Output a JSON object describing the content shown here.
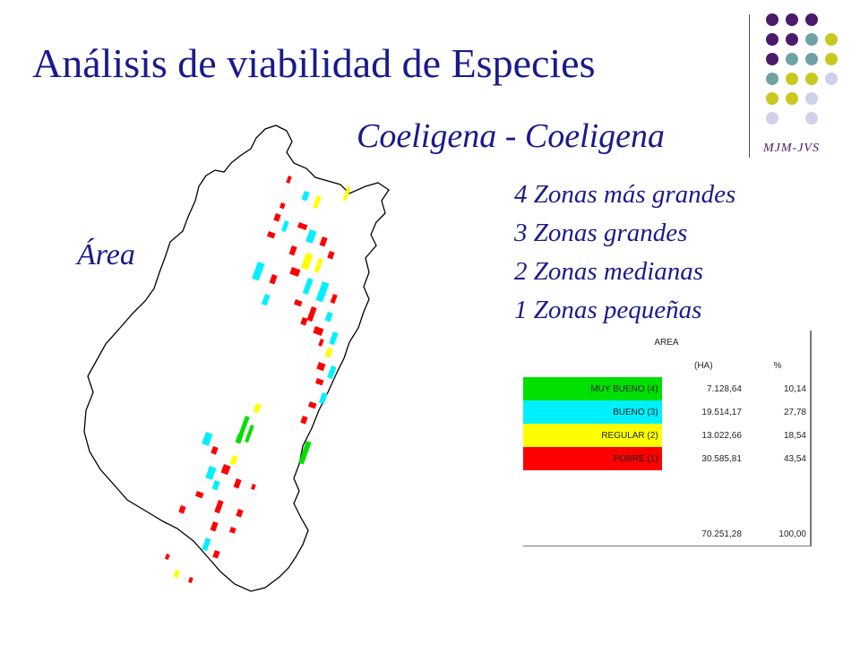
{
  "title": "Análisis de viabilidad de Especies",
  "subtitle": "Coeligena - Coeligena",
  "area_label": "Área",
  "zones": [
    "4 Zonas más grandes",
    "3 Zonas grandes",
    "2 Zonas medianas",
    "1 Zonas pequeñas"
  ],
  "credit": "MJM-JVS",
  "table": {
    "header": "AREA",
    "col_ha": "(HA)",
    "col_pct": "%",
    "rows": [
      {
        "label": "MUY BUENO (4)",
        "ha": "7.128,64",
        "pct": "10,14",
        "color": "#00e000"
      },
      {
        "label": "BUENO (3)",
        "ha": "19.514,17",
        "pct": "27,78",
        "color": "#00f0ff"
      },
      {
        "label": "REGULAR (2)",
        "ha": "13.022,66",
        "pct": "18,54",
        "color": "#ffff00"
      },
      {
        "label": "POBRE (1)",
        "ha": "30.585,81",
        "pct": "43,54",
        "color": "#ff0000"
      }
    ],
    "total_ha": "70.251,28",
    "total_pct": "100,00"
  },
  "colors": {
    "title": "#1a1a8c",
    "dot_purple": "#4b1a6b",
    "dot_teal": "#6fa3a3",
    "dot_olive": "#c8c820",
    "dot_lavender": "#d0d0ea"
  }
}
